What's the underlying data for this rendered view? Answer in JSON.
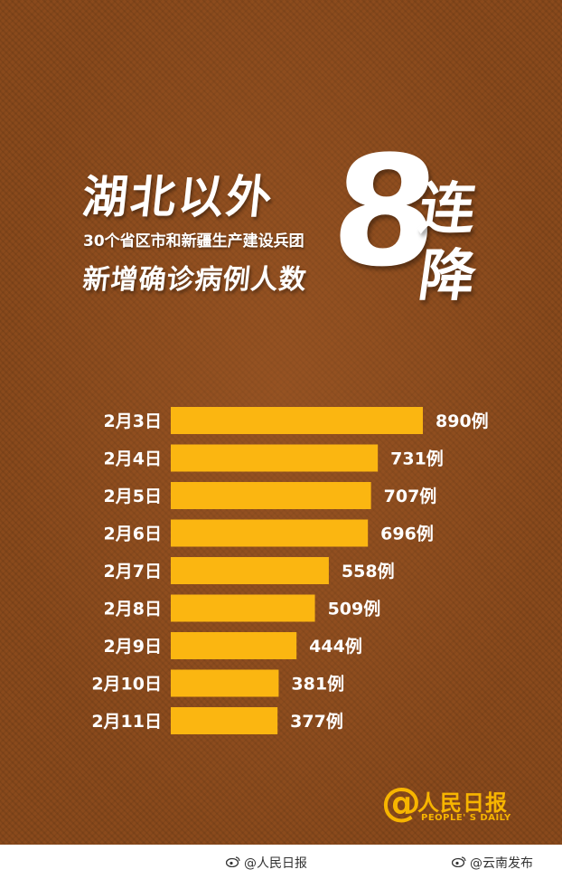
{
  "header": {
    "headline": "湖北以外",
    "subline1": "30个省区市和新疆生产建设兵团",
    "subline2": "新增确诊病例人数",
    "big_number": "8",
    "big_char_1": "连",
    "big_char_2": "降"
  },
  "chart_data": {
    "type": "bar",
    "orientation": "horizontal",
    "categories": [
      "2月3日",
      "2月4日",
      "2月5日",
      "2月6日",
      "2月7日",
      "2月8日",
      "2月9日",
      "2月10日",
      "2月11日"
    ],
    "values": [
      890,
      731,
      707,
      696,
      558,
      509,
      444,
      381,
      377
    ],
    "value_labels": [
      "890例",
      "731例",
      "707例",
      "696例",
      "558例",
      "509例",
      "444例",
      "381例",
      "377例"
    ],
    "title": "",
    "xlabel": "",
    "ylabel": "",
    "xlim": [
      0,
      890
    ],
    "grid": false,
    "legend": "none",
    "bar_color": "#fbb611",
    "text_color": "#ffffff"
  },
  "logo": {
    "at_symbol": "@",
    "name": "人民日报",
    "english": "PEOPLE' S DAILY",
    "color": "#f7b500"
  },
  "footer": {
    "credit_left": "@人民日报",
    "credit_right": "@云南发布"
  },
  "colors": {
    "background": "#8a4a1c"
  }
}
